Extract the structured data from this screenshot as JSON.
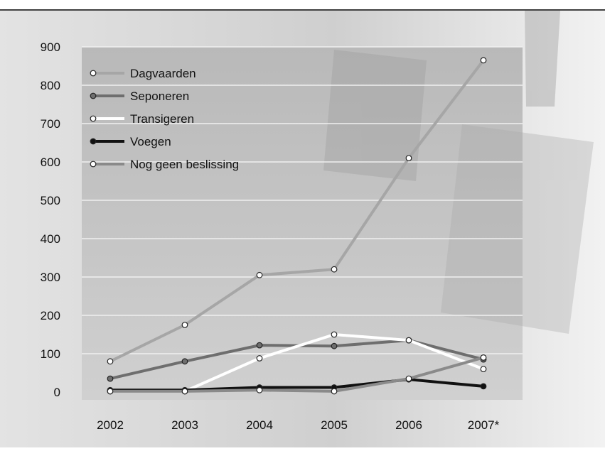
{
  "chart_data": {
    "type": "line",
    "categories": [
      "2002",
      "2003",
      "2004",
      "2005",
      "2006",
      "2007*"
    ],
    "ylim": [
      0,
      900
    ],
    "yticks": [
      0,
      100,
      200,
      300,
      400,
      500,
      600,
      700,
      800,
      900
    ],
    "grid": true,
    "legend_position": "top-left",
    "series": [
      {
        "name": "Dagvaarden",
        "values": [
          80,
          175,
          305,
          320,
          610,
          865
        ],
        "color": "#a6a6a6",
        "marker": "#ffffff"
      },
      {
        "name": "Seponeren",
        "values": [
          35,
          80,
          122,
          120,
          135,
          85
        ],
        "color": "#6e6e6e",
        "marker": "#6e6e6e"
      },
      {
        "name": "Transigeren",
        "values": [
          2,
          2,
          88,
          150,
          135,
          60
        ],
        "color": "#ffffff",
        "marker": "#ffffff"
      },
      {
        "name": "Voegen",
        "values": [
          5,
          5,
          12,
          12,
          33,
          15
        ],
        "color": "#111111",
        "marker": "#111111"
      },
      {
        "name": "Nog geen beslissing",
        "values": [
          2,
          2,
          5,
          2,
          35,
          90
        ],
        "color": "#8a8a8a",
        "marker": "#ffffff"
      }
    ]
  }
}
